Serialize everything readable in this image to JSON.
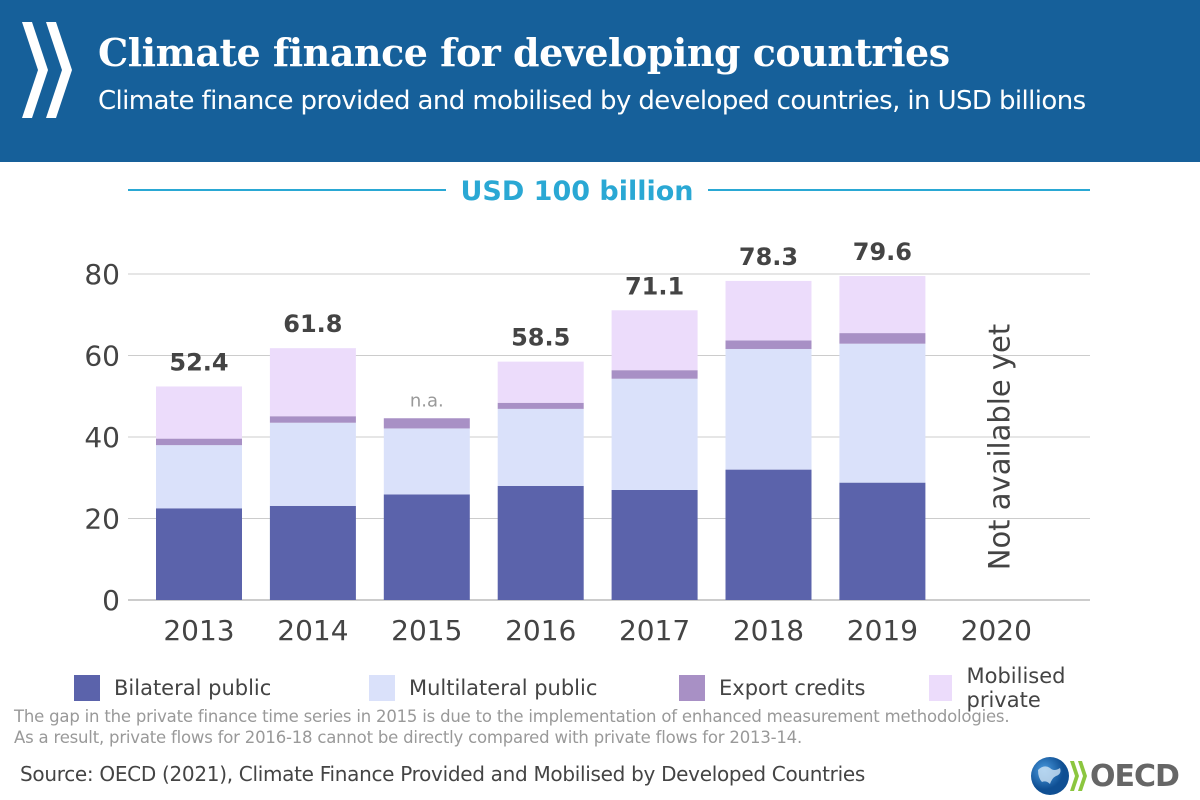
{
  "header": {
    "title": "Climate finance for developing countries",
    "subtitle": "Climate finance provided and mobilised by developed countries, in USD billions"
  },
  "chart_data": {
    "type": "bar",
    "stacked": true,
    "title": "Climate finance for developing countries",
    "ylabel": "USD billions",
    "ylim": [
      0,
      100
    ],
    "yticks": [
      0,
      20,
      40,
      60,
      80
    ],
    "grid": true,
    "reference_line": {
      "value": 100,
      "label": "USD 100 billion"
    },
    "categories": [
      "2013",
      "2014",
      "2015",
      "2016",
      "2017",
      "2018",
      "2019",
      "2020"
    ],
    "series": [
      {
        "name": "Bilateral public",
        "color": "#5b63ab",
        "values": [
          22.5,
          23.1,
          25.9,
          28.0,
          27.0,
          32.0,
          28.8,
          null
        ]
      },
      {
        "name": "Multilateral public",
        "color": "#dae1fa",
        "values": [
          15.5,
          20.4,
          16.2,
          18.9,
          27.3,
          29.6,
          34.1,
          null
        ]
      },
      {
        "name": "Export credits",
        "color": "#a890c5",
        "values": [
          1.6,
          1.6,
          2.5,
          1.5,
          2.1,
          2.1,
          2.6,
          null
        ]
      },
      {
        "name": "Mobilised private",
        "color": "#ecdcfb",
        "values": [
          12.8,
          16.7,
          null,
          10.1,
          14.7,
          14.6,
          14.0,
          null
        ]
      }
    ],
    "totals": [
      "52.4",
      "61.8",
      "n.a.",
      "58.5",
      "71.1",
      "78.3",
      "79.6",
      null
    ],
    "annotation_2020": "Not available yet",
    "legend_position": "bottom"
  },
  "note_lines": [
    "The gap in the private finance time series in 2015 is due to the implementation of enhanced measurement methodologies.",
    "As a result, private flows for 2016-18 cannot be directly compared with private flows for 2013-14."
  ],
  "source": "Source: OECD (2021), Climate Finance Provided and Mobilised by Developed Countries",
  "logo_text": "OECD"
}
